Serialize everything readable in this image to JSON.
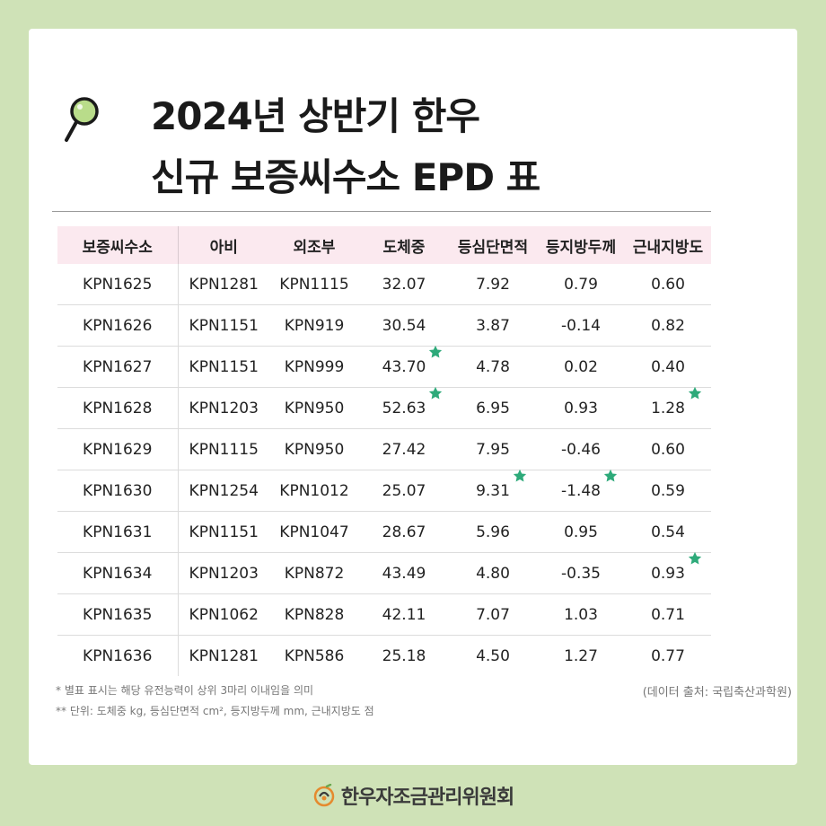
{
  "title": {
    "line1": "2024년 상반기 한우",
    "line2": "신규 보증씨수소 EPD 표"
  },
  "table": {
    "headers": [
      "보증씨수소",
      "아비",
      "외조부",
      "도체중",
      "등심단면적",
      "등지방두께",
      "근내지방도"
    ],
    "rows": [
      [
        "KPN1625",
        "KPN1281",
        "KPN1115",
        "32.07",
        "7.92",
        "0.79",
        "0.60"
      ],
      [
        "KPN1626",
        "KPN1151",
        "KPN919",
        "30.54",
        "3.87",
        "-0.14",
        "0.82"
      ],
      [
        "KPN1627",
        "KPN1151",
        "KPN999",
        "43.70",
        "4.78",
        "0.02",
        "0.40"
      ],
      [
        "KPN1628",
        "KPN1203",
        "KPN950",
        "52.63",
        "6.95",
        "0.93",
        "1.28"
      ],
      [
        "KPN1629",
        "KPN1115",
        "KPN950",
        "27.42",
        "7.95",
        "-0.46",
        "0.60"
      ],
      [
        "KPN1630",
        "KPN1254",
        "KPN1012",
        "25.07",
        "9.31",
        "-1.48",
        "0.59"
      ],
      [
        "KPN1631",
        "KPN1151",
        "KPN1047",
        "28.67",
        "5.96",
        "0.95",
        "0.54"
      ],
      [
        "KPN1634",
        "KPN1203",
        "KPN872",
        "43.49",
        "4.80",
        "-0.35",
        "0.93"
      ],
      [
        "KPN1635",
        "KPN1062",
        "KPN828",
        "42.11",
        "7.07",
        "1.03",
        "0.71"
      ],
      [
        "KPN1636",
        "KPN1281",
        "KPN586",
        "25.18",
        "4.50",
        "1.27",
        "0.77"
      ]
    ],
    "starred": [
      [
        2,
        3
      ],
      [
        3,
        3
      ],
      [
        3,
        6
      ],
      [
        5,
        4
      ],
      [
        5,
        5
      ],
      [
        7,
        6
      ]
    ],
    "star_color": "#2eaa7a",
    "header_bg": "#fbe9ef"
  },
  "notes": {
    "line1": "* 별표 표시는 해당 유전능력이 상위 3마리 이내임을 의미",
    "line2": "** 단위: 도체중 kg, 등심단면적 cm², 등지방두께 mm, 근내지방도 점",
    "source": "(데이터 출처: 국립축산과학원)"
  },
  "footer": {
    "org_name": "한우자조금관리위원회",
    "icon": "hanwoo-logo-icon"
  },
  "colors": {
    "background": "#cfe2b7",
    "card": "#ffffff",
    "magnifier_lens": "#b9dc8a"
  },
  "icons": {
    "title": "magnifier-icon",
    "highlight": "star-icon"
  }
}
